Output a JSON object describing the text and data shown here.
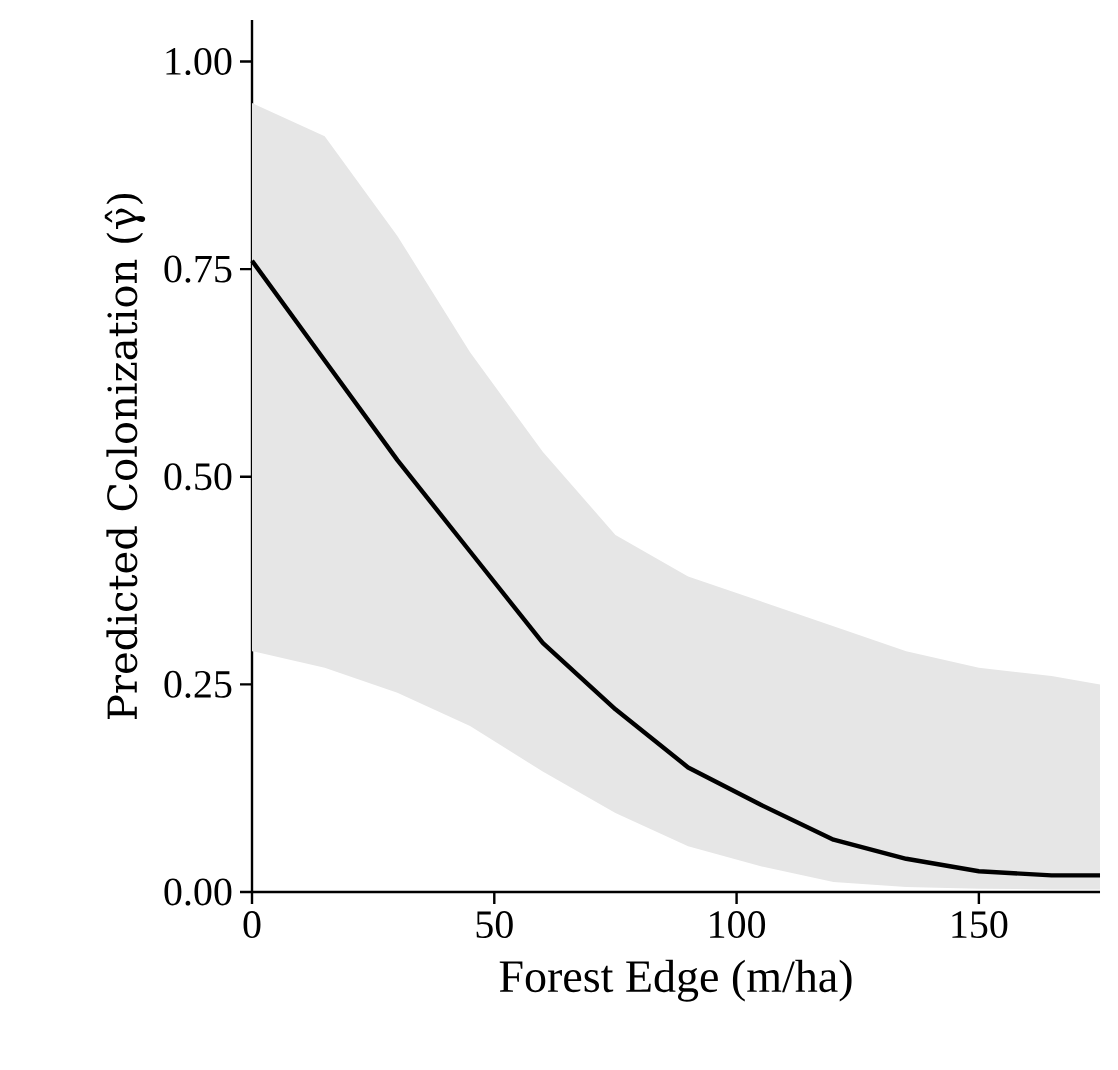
{
  "chart_data": {
    "type": "line",
    "xlabel": "Forest Edge (m/ha)",
    "ylabel": "Predicted Colonization  (γ̂)",
    "x": [
      0,
      15,
      30,
      45,
      60,
      75,
      90,
      105,
      120,
      135,
      150,
      165,
      175
    ],
    "series": [
      {
        "color": "#000000",
        "values": [
          0.76,
          0.64,
          0.52,
          0.41,
          0.3,
          0.22,
          0.15,
          0.105,
          0.063,
          0.04,
          0.025,
          0.02,
          0.02
        ],
        "lower": [
          0.29,
          0.27,
          0.24,
          0.2,
          0.145,
          0.095,
          0.055,
          0.031,
          0.012,
          0.006,
          0.004,
          0.003,
          0.003
        ],
        "upper": [
          0.95,
          0.91,
          0.79,
          0.65,
          0.53,
          0.43,
          0.38,
          0.35,
          0.32,
          0.29,
          0.27,
          0.26,
          0.25
        ]
      }
    ],
    "xlim": [
      0,
      175
    ],
    "ylim": [
      0,
      1.05
    ],
    "xticks": [
      0,
      50,
      100,
      150
    ],
    "yticks": [
      {
        "value": 0,
        "label": "0.00"
      },
      {
        "value": 0.25,
        "label": "0.25"
      },
      {
        "value": 0.5,
        "label": "0.50"
      },
      {
        "value": 0.75,
        "label": "0.75"
      },
      {
        "value": 1,
        "label": "1.00"
      }
    ],
    "grid": false,
    "marker": "none",
    "line_style": "solid"
  }
}
